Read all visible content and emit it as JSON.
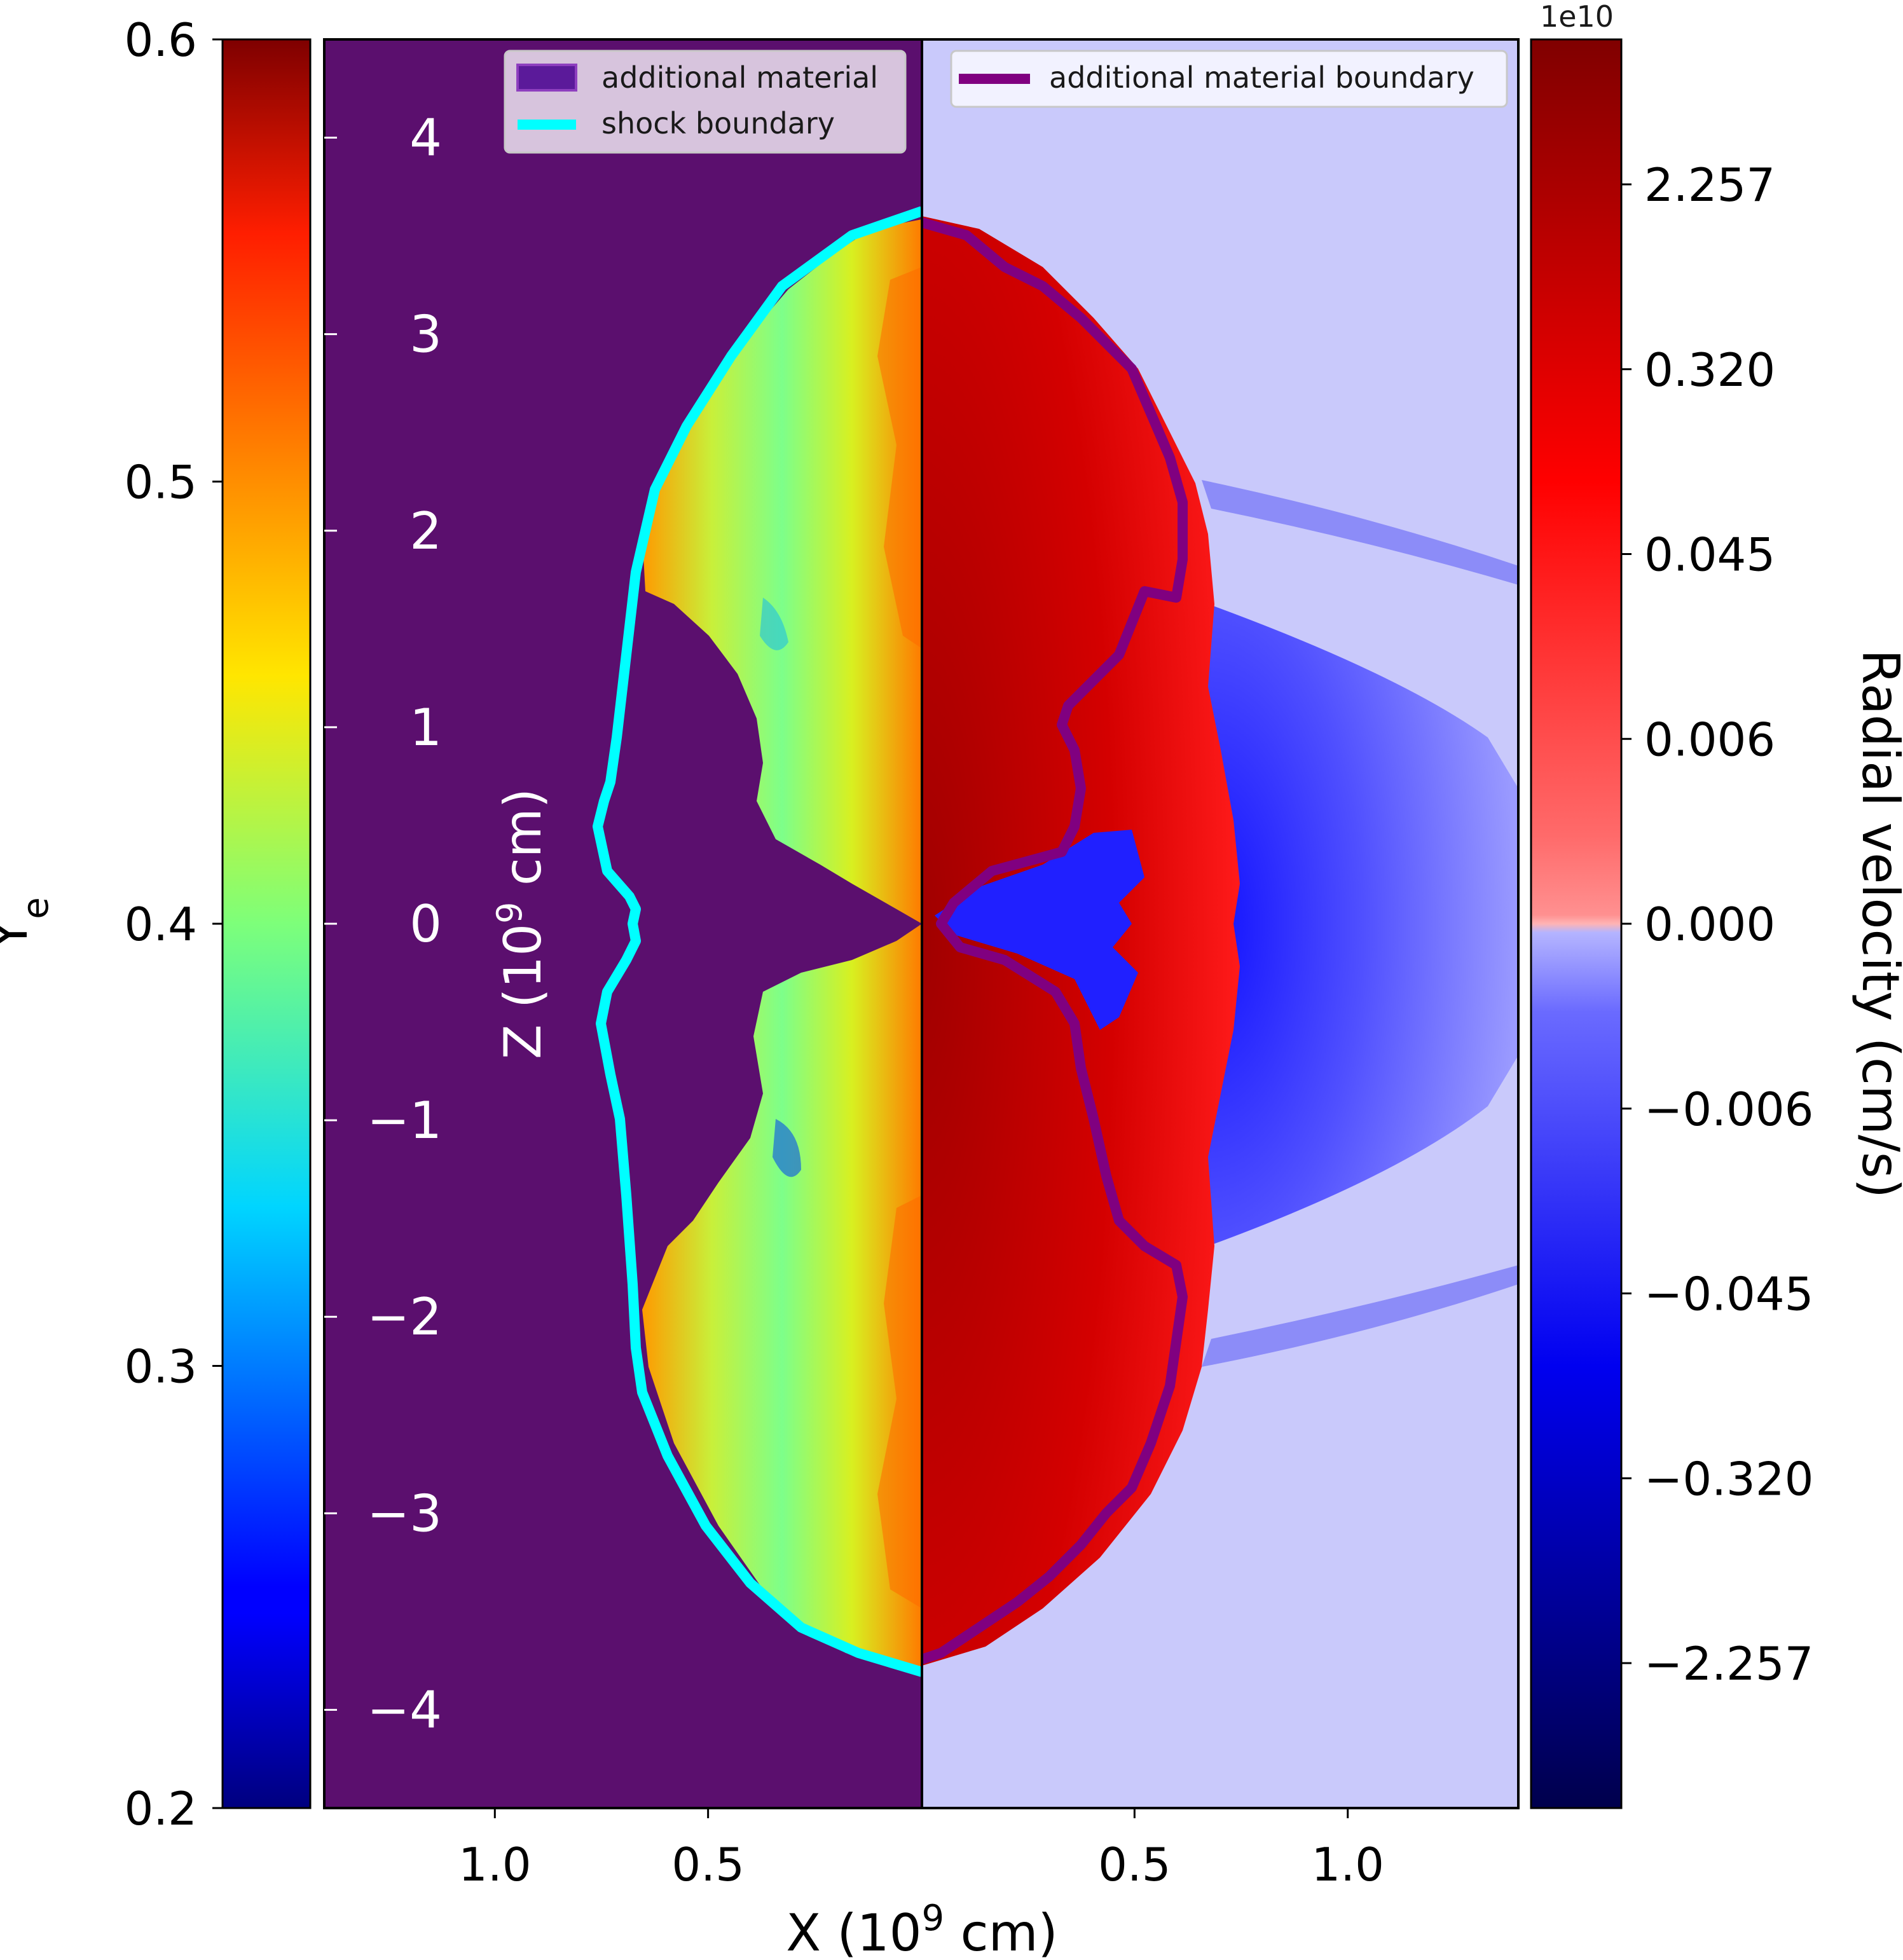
{
  "chart_data": {
    "type": "heatmap",
    "panels": [
      {
        "side": "left",
        "quantity": "Y_e",
        "colorbar": {
          "label": "Y",
          "label_subscript": "e",
          "colormap": "jet",
          "ticks": [
            "0.6",
            "0.5",
            "0.4",
            "0.3",
            "0.2"
          ],
          "range": [
            0.2,
            0.6
          ]
        },
        "legend": [
          {
            "label": "additional material",
            "style": "patch",
            "color": "#5b1a9a"
          },
          {
            "label": "shock boundary",
            "style": "line",
            "color": "#00ffff"
          }
        ]
      },
      {
        "side": "right",
        "quantity": "Radial velocity",
        "colorbar": {
          "label": "Radial velocity (cm/s)",
          "multiplier": "1e10",
          "colormap": "seismic",
          "ticks": [
            "2.257",
            "0.320",
            "0.045",
            "0.006",
            "0.000",
            "−0.006",
            "−0.045",
            "−0.320",
            "−2.257"
          ]
        },
        "legend": [
          {
            "label": "additional material boundary",
            "style": "line",
            "color": "#800080"
          }
        ]
      }
    ],
    "xlabel": {
      "prefix": "X (10",
      "exp": "9",
      "suffix": " cm)"
    },
    "zlabel": {
      "prefix": "Z (10",
      "exp": "9",
      "suffix": " cm)"
    },
    "x_ticks": [
      "1.0",
      "0.5",
      "0.5",
      "1.0"
    ],
    "x_tick_values": [
      -1.0,
      -0.5,
      0.5,
      1.0
    ],
    "xlim": [
      -1.4,
      1.4
    ],
    "z_ticks": [
      "4",
      "3",
      "2",
      "1",
      "0",
      "−1",
      "−2",
      "−3",
      "−4"
    ],
    "z_tick_values": [
      4,
      3,
      2,
      1,
      0,
      -1,
      -2,
      -3,
      -4
    ],
    "zlim": [
      -4.5,
      4.5
    ],
    "colors": {
      "left_background": "#5b0f6e",
      "right_background": "#c9c9fb",
      "shock_boundary": "#00ffff",
      "material_boundary": "#800080"
    }
  }
}
